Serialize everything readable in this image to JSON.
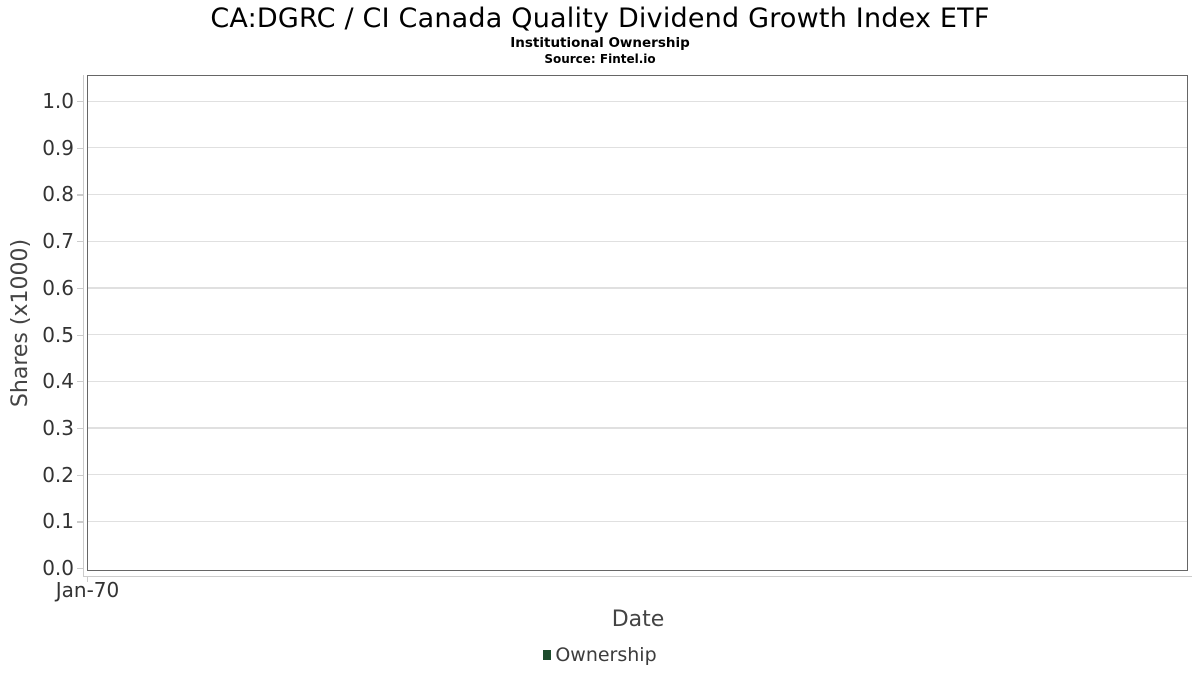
{
  "chart_data": {
    "type": "line",
    "title": "CA:DGRC / CI Canada Quality Dividend Growth Index ETF",
    "subtitle": "Institutional Ownership",
    "source": "Source: Fintel.io",
    "xlabel": "Date",
    "ylabel": "Shares (x1000)",
    "x": [],
    "x_tick_labels": [
      "Jan-70"
    ],
    "y_ticks": [
      0.0,
      0.1,
      0.2,
      0.3,
      0.4,
      0.5,
      0.6,
      0.7,
      0.8,
      0.9,
      1.0
    ],
    "y_tick_labels": [
      "0.0",
      "0.1",
      "0.2",
      "0.3",
      "0.4",
      "0.5",
      "0.6",
      "0.7",
      "0.8",
      "0.9",
      "1.0"
    ],
    "ylim": [
      0.0,
      1.06
    ],
    "grid": "horizontal",
    "legend_position": "bottom-center",
    "series": [
      {
        "name": "Ownership",
        "color": "#1d4b2c",
        "values": []
      }
    ]
  },
  "colors": {
    "background": "#ffffff",
    "plot_border": "#666666",
    "gridline": "#e0e0e0",
    "axis_line": "#cccccc",
    "tick_label": "#333333",
    "axis_title": "#444444",
    "title_text": "#000000",
    "legend_green": "#1d4b2c"
  }
}
